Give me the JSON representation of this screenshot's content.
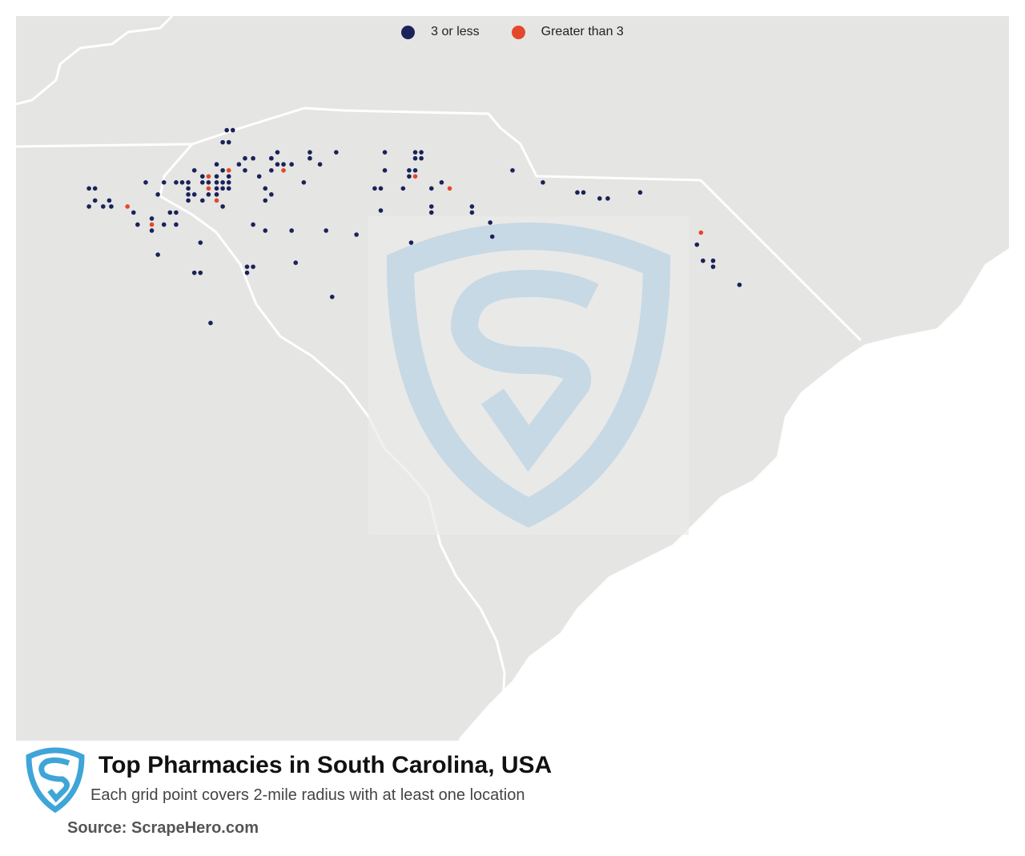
{
  "map": {
    "region": "South Carolina, USA",
    "colors": {
      "background_land": "#e5e5e4",
      "state_fill": "#e5e5e4",
      "borders": "#ffffff",
      "ocean": "#ffffff",
      "dot_low": "#1a2258",
      "dot_high": "#e5472a",
      "watermark": "#b9d3e4"
    }
  },
  "legend": {
    "items": [
      {
        "label": "3 or less",
        "color": "#1a2258"
      },
      {
        "label": "Greater than 3",
        "color": "#e5472a"
      }
    ]
  },
  "title": "Top Pharmacies in South Carolina, USA",
  "subtitle": "Each grid point covers 2-mile radius with at least one location",
  "source": "Source: ScrapeHero.com",
  "logo": {
    "icon": "scrapehero-shield-icon",
    "color": "#3fa5d8"
  },
  "points": [
    {
      "lon": -82.38,
      "lat": 35.06,
      "count": "3 or less"
    },
    {
      "lon": -82.35,
      "lat": 35.06,
      "count": "3 or less"
    },
    {
      "lon": -82.11,
      "lat": 35.01,
      "count": "3 or less"
    },
    {
      "lon": -81.95,
      "lat": 35.01,
      "count": "3 or less"
    },
    {
      "lon": -81.95,
      "lat": 34.98,
      "count": "3 or less"
    },
    {
      "lon": -81.82,
      "lat": 35.01,
      "count": "3 or less"
    },
    {
      "lon": -81.58,
      "lat": 35.01,
      "count": "3 or less"
    },
    {
      "lon": -81.43,
      "lat": 34.98,
      "count": "3 or less"
    },
    {
      "lon": -81.4,
      "lat": 34.98,
      "count": "3 or less"
    },
    {
      "lon": -81.43,
      "lat": 35.01,
      "count": "3 or less"
    },
    {
      "lon": -81.4,
      "lat": 35.01,
      "count": "3 or less"
    },
    {
      "lon": -81.9,
      "lat": 34.95,
      "count": "3 or less"
    },
    {
      "lon": -81.58,
      "lat": 34.92,
      "count": "3 or less"
    },
    {
      "lon": -81.46,
      "lat": 34.92,
      "count": "3 or less"
    },
    {
      "lon": -81.43,
      "lat": 34.92,
      "count": "3 or less"
    },
    {
      "lon": -81.43,
      "lat": 34.89,
      "count": ">3"
    },
    {
      "lon": -81.46,
      "lat": 34.89,
      "count": "3 or less"
    },
    {
      "lon": -81.3,
      "lat": 34.86,
      "count": "3 or less"
    },
    {
      "lon": -82.52,
      "lat": 34.92,
      "count": "3 or less"
    },
    {
      "lon": -82.48,
      "lat": 34.89,
      "count": "3 or less"
    },
    {
      "lon": -82.45,
      "lat": 34.89,
      "count": ">3"
    },
    {
      "lon": -82.41,
      "lat": 34.89,
      "count": "3 or less"
    },
    {
      "lon": -82.48,
      "lat": 34.86,
      "count": "3 or less"
    },
    {
      "lon": -82.45,
      "lat": 34.86,
      "count": "3 or less"
    },
    {
      "lon": -82.41,
      "lat": 34.86,
      "count": "3 or less"
    },
    {
      "lon": -82.38,
      "lat": 34.86,
      "count": "3 or less"
    },
    {
      "lon": -82.35,
      "lat": 34.86,
      "count": "3 or less"
    },
    {
      "lon": -82.55,
      "lat": 34.86,
      "count": "3 or less"
    },
    {
      "lon": -82.58,
      "lat": 34.86,
      "count": "3 or less"
    },
    {
      "lon": -82.61,
      "lat": 34.86,
      "count": "3 or less"
    },
    {
      "lon": -82.67,
      "lat": 34.86,
      "count": "3 or less"
    },
    {
      "lon": -82.76,
      "lat": 34.86,
      "count": "3 or less"
    },
    {
      "lon": -82.45,
      "lat": 34.83,
      "count": ">3"
    },
    {
      "lon": -82.41,
      "lat": 34.83,
      "count": "3 or less"
    },
    {
      "lon": -82.38,
      "lat": 34.83,
      "count": "3 or less"
    },
    {
      "lon": -82.35,
      "lat": 34.83,
      "count": "3 or less"
    },
    {
      "lon": -82.55,
      "lat": 34.83,
      "count": "3 or less"
    },
    {
      "lon": -82.52,
      "lat": 34.8,
      "count": "3 or less"
    },
    {
      "lon": -82.45,
      "lat": 34.8,
      "count": "3 or less"
    },
    {
      "lon": -82.41,
      "lat": 34.8,
      "count": "3 or less"
    },
    {
      "lon": -82.55,
      "lat": 34.8,
      "count": "3 or less"
    },
    {
      "lon": -82.7,
      "lat": 34.8,
      "count": "3 or less"
    },
    {
      "lon": -82.41,
      "lat": 34.77,
      "count": ">3"
    },
    {
      "lon": -82.48,
      "lat": 34.77,
      "count": "3 or less"
    },
    {
      "lon": -82.55,
      "lat": 34.77,
      "count": "3 or less"
    },
    {
      "lon": -82.17,
      "lat": 34.83,
      "count": "3 or less"
    },
    {
      "lon": -82.14,
      "lat": 34.8,
      "count": "3 or less"
    },
    {
      "lon": -82.17,
      "lat": 34.77,
      "count": "3 or less"
    },
    {
      "lon": -82.38,
      "lat": 34.74,
      "count": "3 or less"
    },
    {
      "lon": -82.2,
      "lat": 34.89,
      "count": "3 or less"
    },
    {
      "lon": -82.11,
      "lat": 34.95,
      "count": "3 or less"
    },
    {
      "lon": -82.04,
      "lat": 34.95,
      "count": "3 or less"
    },
    {
      "lon": -82.08,
      "lat": 34.95,
      "count": "3 or less"
    },
    {
      "lon": -82.14,
      "lat": 34.92,
      "count": "3 or less"
    },
    {
      "lon": -82.08,
      "lat": 34.92,
      "count": ">3"
    },
    {
      "lon": -81.98,
      "lat": 34.86,
      "count": "3 or less"
    },
    {
      "lon": -82.14,
      "lat": 34.98,
      "count": "3 or less"
    },
    {
      "lon": -82.14,
      "lat": 34.98,
      "count": "3 or less"
    },
    {
      "lon": -82.41,
      "lat": 34.95,
      "count": "3 or less"
    },
    {
      "lon": -82.38,
      "lat": 34.92,
      "count": "3 or less"
    },
    {
      "lon": -82.35,
      "lat": 34.92,
      "count": ">3"
    },
    {
      "lon": -82.35,
      "lat": 34.89,
      "count": "3 or less"
    },
    {
      "lon": -82.3,
      "lat": 34.95,
      "count": "3 or less"
    },
    {
      "lon": -82.27,
      "lat": 34.92,
      "count": "3 or less"
    },
    {
      "lon": -82.27,
      "lat": 34.98,
      "count": "3 or less"
    },
    {
      "lon": -82.23,
      "lat": 34.98,
      "count": "3 or less"
    },
    {
      "lon": -82.36,
      "lat": 35.12,
      "count": "3 or less"
    },
    {
      "lon": -82.33,
      "lat": 35.12,
      "count": "3 or less"
    },
    {
      "lon": -83.04,
      "lat": 34.83,
      "count": "3 or less"
    },
    {
      "lon": -83.01,
      "lat": 34.83,
      "count": "3 or less"
    },
    {
      "lon": -83.01,
      "lat": 34.77,
      "count": "3 or less"
    },
    {
      "lon": -83.04,
      "lat": 34.74,
      "count": "3 or less"
    },
    {
      "lon": -82.94,
      "lat": 34.77,
      "count": "3 or less"
    },
    {
      "lon": -82.97,
      "lat": 34.74,
      "count": "3 or less"
    },
    {
      "lon": -82.93,
      "lat": 34.74,
      "count": "3 or less"
    },
    {
      "lon": -82.85,
      "lat": 34.74,
      "count": ">3"
    },
    {
      "lon": -82.82,
      "lat": 34.71,
      "count": "3 or less"
    },
    {
      "lon": -82.73,
      "lat": 34.68,
      "count": "3 or less"
    },
    {
      "lon": -82.73,
      "lat": 34.65,
      "count": ">3"
    },
    {
      "lon": -82.73,
      "lat": 34.62,
      "count": "3 or less"
    },
    {
      "lon": -82.64,
      "lat": 34.71,
      "count": "3 or less"
    },
    {
      "lon": -82.61,
      "lat": 34.71,
      "count": "3 or less"
    },
    {
      "lon": -82.67,
      "lat": 34.65,
      "count": "3 or less"
    },
    {
      "lon": -82.8,
      "lat": 34.65,
      "count": "3 or less"
    },
    {
      "lon": -82.61,
      "lat": 34.65,
      "count": "3 or less"
    },
    {
      "lon": -82.23,
      "lat": 34.65,
      "count": "3 or less"
    },
    {
      "lon": -82.17,
      "lat": 34.62,
      "count": "3 or less"
    },
    {
      "lon": -82.04,
      "lat": 34.62,
      "count": "3 or less"
    },
    {
      "lon": -82.49,
      "lat": 34.56,
      "count": "3 or less"
    },
    {
      "lon": -82.7,
      "lat": 34.5,
      "count": "3 or less"
    },
    {
      "lon": -82.26,
      "lat": 34.44,
      "count": "3 or less"
    },
    {
      "lon": -82.26,
      "lat": 34.41,
      "count": "3 or less"
    },
    {
      "lon": -82.23,
      "lat": 34.44,
      "count": "3 or less"
    },
    {
      "lon": -82.52,
      "lat": 34.41,
      "count": "3 or less"
    },
    {
      "lon": -82.49,
      "lat": 34.41,
      "count": "3 or less"
    },
    {
      "lon": -82.44,
      "lat": 34.16,
      "count": "3 or less"
    },
    {
      "lon": -81.87,
      "lat": 34.62,
      "count": "3 or less"
    },
    {
      "lon": -81.6,
      "lat": 34.72,
      "count": "3 or less"
    },
    {
      "lon": -81.63,
      "lat": 34.83,
      "count": "3 or less"
    },
    {
      "lon": -81.6,
      "lat": 34.83,
      "count": "3 or less"
    },
    {
      "lon": -81.49,
      "lat": 34.83,
      "count": "3 or less"
    },
    {
      "lon": -81.26,
      "lat": 34.83,
      "count": ">3"
    },
    {
      "lon": -81.35,
      "lat": 34.83,
      "count": "3 or less"
    },
    {
      "lon": -81.45,
      "lat": 34.56,
      "count": "3 or less"
    },
    {
      "lon": -81.35,
      "lat": 34.74,
      "count": "3 or less"
    },
    {
      "lon": -81.35,
      "lat": 34.71,
      "count": "3 or less"
    },
    {
      "lon": -81.15,
      "lat": 34.74,
      "count": "3 or less"
    },
    {
      "lon": -81.15,
      "lat": 34.71,
      "count": "3 or less"
    },
    {
      "lon": -81.05,
      "lat": 34.59,
      "count": "3 or less"
    },
    {
      "lon": -80.95,
      "lat": 34.92,
      "count": "3 or less"
    },
    {
      "lon": -80.8,
      "lat": 34.86,
      "count": "3 or less"
    },
    {
      "lon": -80.63,
      "lat": 34.81,
      "count": "3 or less"
    },
    {
      "lon": -80.6,
      "lat": 34.81,
      "count": "3 or less"
    },
    {
      "lon": -80.52,
      "lat": 34.78,
      "count": "3 or less"
    },
    {
      "lon": -80.48,
      "lat": 34.78,
      "count": "3 or less"
    },
    {
      "lon": -80.32,
      "lat": 34.81,
      "count": "3 or less"
    },
    {
      "lon": -80.02,
      "lat": 34.61,
      "count": ">3"
    },
    {
      "lon": -80.04,
      "lat": 34.55,
      "count": "3 or less"
    },
    {
      "lon": -80.01,
      "lat": 34.47,
      "count": "3 or less"
    },
    {
      "lon": -79.96,
      "lat": 34.47,
      "count": "3 or less"
    },
    {
      "lon": -79.96,
      "lat": 34.44,
      "count": "3 or less"
    },
    {
      "lon": -79.83,
      "lat": 34.35,
      "count": "3 or less"
    },
    {
      "lon": -81.72,
      "lat": 34.6,
      "count": "3 or less"
    },
    {
      "lon": -81.06,
      "lat": 34.66,
      "count": "3 or less"
    },
    {
      "lon": -82.02,
      "lat": 34.46,
      "count": "3 or less"
    },
    {
      "lon": -81.84,
      "lat": 34.29,
      "count": "3 or less"
    }
  ]
}
